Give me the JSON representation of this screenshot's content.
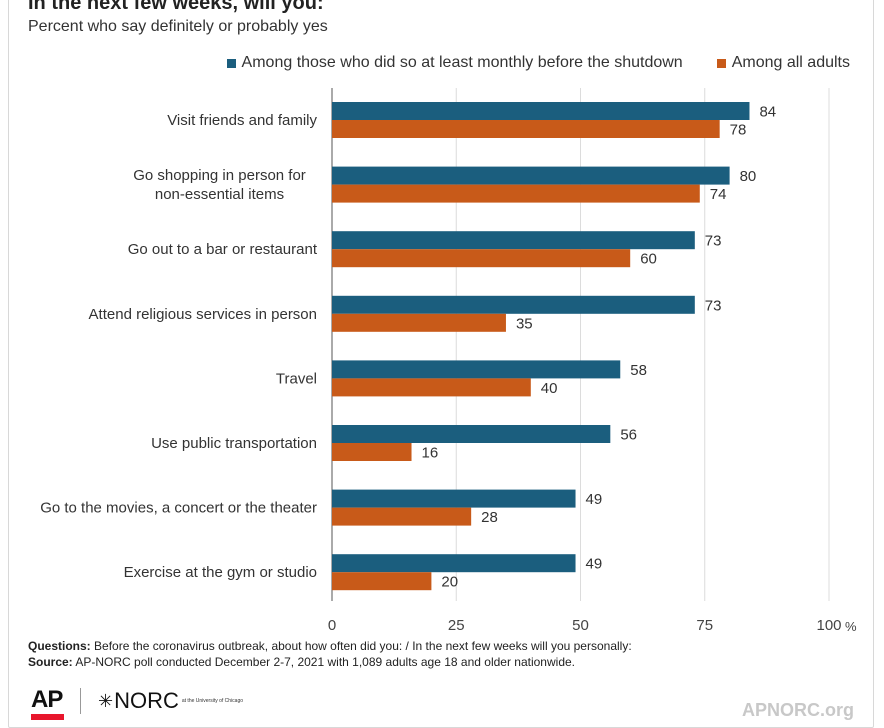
{
  "header": {
    "title": "In the next few weeks, will you:",
    "subtitle": "Percent who say definitely or probably yes"
  },
  "legend": {
    "series1_label": "Among those who did so at least monthly before the shutdown",
    "series2_label": "Among all adults"
  },
  "colors": {
    "series1": "#1b5e7e",
    "series2": "#c85a19",
    "grid": "#dcdcdc"
  },
  "chart_data": {
    "type": "bar",
    "orientation": "horizontal",
    "categories": [
      "Visit friends and family",
      "Go shopping in person for non-essential items",
      "Go out to a bar or restaurant",
      "Attend religious services in person",
      "Travel",
      "Use public transportation",
      "Go to the movies, a concert or the theater",
      "Exercise at the gym or studio"
    ],
    "series": [
      {
        "name": "Among those who did so at least monthly before the shutdown",
        "values": [
          84,
          80,
          73,
          73,
          58,
          56,
          49,
          49
        ]
      },
      {
        "name": "Among all adults",
        "values": [
          78,
          74,
          60,
          35,
          40,
          16,
          28,
          20
        ]
      }
    ],
    "xlim": [
      0,
      100
    ],
    "xticks": [
      "0",
      "25",
      "50",
      "75",
      "100"
    ],
    "x_unit": "%",
    "grid": true,
    "legend_position": "top-right"
  },
  "footer": {
    "questions_label": "Questions:",
    "questions_text": "Before the coronavirus outbreak, about how often did you: / In the next few weeks will you personally:",
    "source_label": "Source:",
    "source_text": "AP-NORC poll conducted December 2-7, 2021 with 1,089 adults age 18 and older nationwide.",
    "logo_ap": "AP",
    "logo_norc": "NORC",
    "logo_norc_small": "at the University of Chicago",
    "site": "APNORC.org"
  }
}
